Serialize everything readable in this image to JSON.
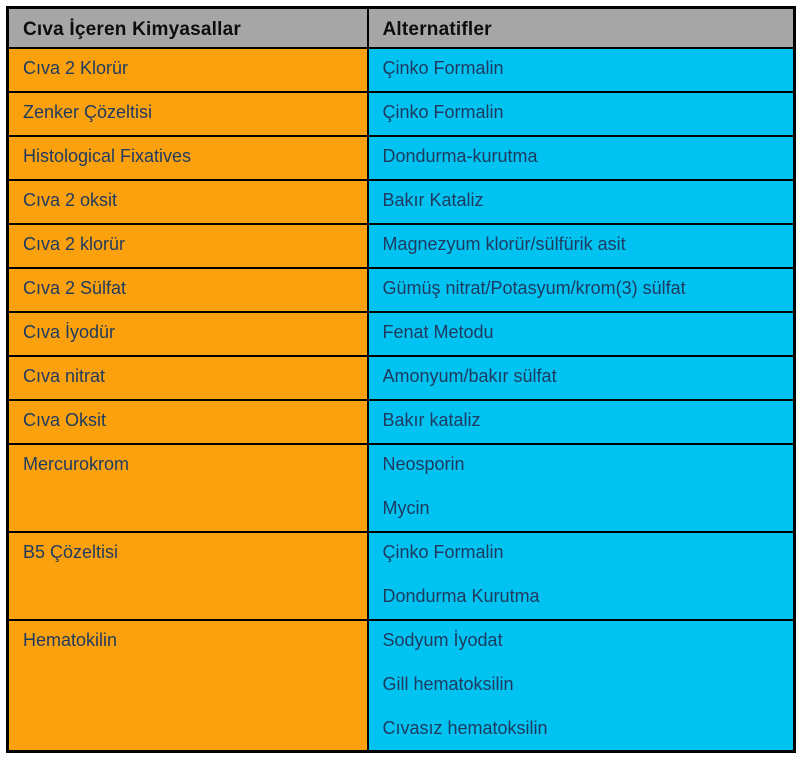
{
  "colors": {
    "header_bg": "#a6a6a6",
    "left_column_bg": "#fca10e",
    "right_column_bg": "#00c3f2",
    "border": "#000000",
    "body_text": "#1e3a5f",
    "header_text": "#0d0d0d"
  },
  "table": {
    "headers": [
      "Cıva İçeren Kimyasallar",
      "Alternatifler"
    ],
    "rows": [
      {
        "chemical": "Cıva 2 Klorür",
        "alternatives": [
          "Çinko Formalin"
        ]
      },
      {
        "chemical": "Zenker Çözeltisi",
        "alternatives": [
          "Çinko Formalin"
        ]
      },
      {
        "chemical": "Histological Fixatives",
        "alternatives": [
          "Dondurma-kurutma"
        ]
      },
      {
        "chemical": "Cıva 2 oksit",
        "alternatives": [
          "Bakır Kataliz"
        ]
      },
      {
        "chemical": "Cıva 2 klorür",
        "alternatives": [
          "Magnezyum klorür/sülfürik asit"
        ]
      },
      {
        "chemical": "Cıva 2 Sülfat",
        "alternatives": [
          "Gümüş nitrat/Potasyum/krom(3) sülfat"
        ]
      },
      {
        "chemical": "Cıva İyodür",
        "alternatives": [
          "Fenat Metodu"
        ]
      },
      {
        "chemical": "Cıva nitrat",
        "alternatives": [
          "Amonyum/bakır sülfat"
        ]
      },
      {
        "chemical": "Cıva Oksit",
        "alternatives": [
          "Bakır kataliz"
        ]
      },
      {
        "chemical": "Mercurokrom",
        "alternatives": [
          "Neosporin",
          "Mycin"
        ]
      },
      {
        "chemical": "B5 Çözeltisi",
        "alternatives": [
          "Çinko Formalin",
          "Dondurma Kurutma"
        ]
      },
      {
        "chemical": "Hematokilin",
        "alternatives": [
          "Sodyum İyodat",
          "Gill hematoksilin",
          "Cıvasız hematoksilin"
        ]
      }
    ]
  }
}
